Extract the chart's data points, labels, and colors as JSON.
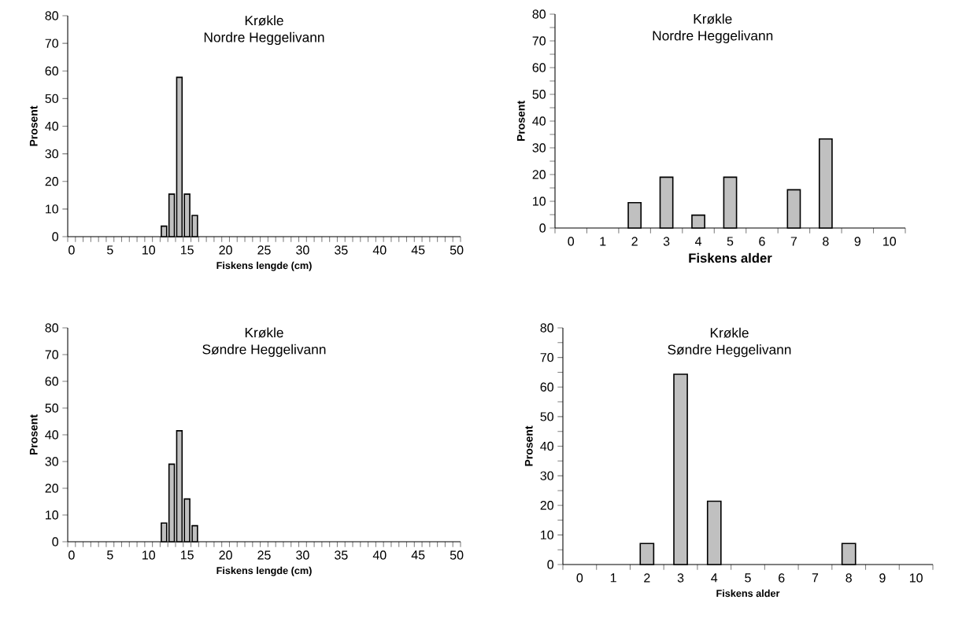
{
  "chart_data": [
    {
      "type": "bar",
      "title": "Krøkle",
      "subtitle": "Nordre Heggelivann",
      "xlabel": "Fiskens lengde (cm)",
      "ylabel": "Prosent",
      "categories": [
        "0",
        null,
        null,
        null,
        null,
        "5",
        null,
        null,
        null,
        null,
        "10",
        null,
        null,
        null,
        null,
        "15",
        null,
        null,
        null,
        null,
        "20",
        null,
        null,
        null,
        null,
        "25",
        null,
        null,
        null,
        null,
        "30",
        null,
        null,
        null,
        null,
        "35",
        null,
        null,
        null,
        null,
        "40",
        null,
        null,
        null,
        null,
        "45",
        null,
        null,
        null,
        null,
        "50"
      ],
      "values": [
        null,
        null,
        null,
        null,
        null,
        null,
        null,
        null,
        null,
        null,
        null,
        null,
        3.8,
        15.4,
        57.7,
        15.4,
        7.7,
        null,
        null,
        null,
        null,
        null,
        null,
        null,
        null,
        null,
        null,
        null,
        null,
        null,
        null,
        null,
        null,
        null,
        null,
        null,
        null,
        null,
        null,
        null,
        null,
        null,
        null,
        null,
        null,
        null,
        null,
        null,
        null,
        null,
        null
      ],
      "color": "#c0c0c0",
      "ylim": [
        0,
        80
      ],
      "yticks": [
        0,
        10,
        20,
        30,
        40,
        50,
        60,
        70,
        80
      ]
    },
    {
      "type": "bar",
      "title": "Krøkle",
      "subtitle": "Nordre Heggelivann",
      "xlabel": "Fiskens alder",
      "ylabel": "Prosent",
      "categories": [
        "0",
        "1",
        "2",
        "3",
        "4",
        "5",
        "6",
        "7",
        "8",
        "9",
        "10"
      ],
      "values": [
        null,
        null,
        9.5,
        19,
        4.8,
        19,
        null,
        14.3,
        33.3,
        null,
        null
      ],
      "color": "#c0c0c0",
      "ylim": [
        0,
        80
      ],
      "yticks": [
        0,
        {
          "value": 5,
          "label": null
        },
        10,
        {
          "value": 15,
          "label": null
        },
        20,
        {
          "value": 25,
          "label": null
        },
        30,
        {
          "value": 35,
          "label": null
        },
        40,
        {
          "value": 45,
          "label": null
        },
        50,
        {
          "value": 55,
          "label": null
        },
        60,
        {
          "value": 65,
          "label": null
        },
        70,
        {
          "value": 75,
          "label": null
        },
        80
      ]
    },
    {
      "type": "bar",
      "title": "Krøkle",
      "subtitle": "Søndre Heggelivann",
      "xlabel": "Fiskens lengde (cm)",
      "ylabel": "Prosent",
      "categories": [
        "0",
        null,
        null,
        null,
        null,
        "5",
        null,
        null,
        null,
        null,
        "10",
        null,
        null,
        null,
        null,
        "15",
        null,
        null,
        null,
        null,
        "20",
        null,
        null,
        null,
        null,
        "25",
        null,
        null,
        null,
        null,
        "30",
        null,
        null,
        null,
        null,
        "35",
        null,
        null,
        null,
        null,
        "40",
        null,
        null,
        null,
        null,
        "45",
        null,
        null,
        null,
        null,
        "50"
      ],
      "values": [
        null,
        null,
        null,
        null,
        null,
        null,
        null,
        null,
        null,
        null,
        null,
        null,
        7,
        29,
        41.5,
        16,
        6,
        null,
        null,
        null,
        null,
        null,
        null,
        null,
        null,
        null,
        null,
        null,
        null,
        null,
        null,
        null,
        null,
        null,
        null,
        null,
        null,
        null,
        null,
        null,
        null,
        null,
        null,
        null,
        null,
        null,
        null,
        null,
        null,
        null,
        null
      ],
      "color": "#c0c0c0",
      "ylim": [
        0,
        80
      ],
      "yticks": [
        0,
        10,
        20,
        30,
        40,
        50,
        60,
        70,
        80
      ]
    },
    {
      "type": "bar",
      "title": "Krøkle",
      "subtitle": "Søndre Heggelivann",
      "xlabel": "Fiskens alder",
      "ylabel": "Prosent",
      "categories": [
        "0",
        "1",
        "2",
        "3",
        "4",
        "5",
        "6",
        "7",
        "8",
        "9",
        "10"
      ],
      "values": [
        null,
        null,
        7.1,
        64.3,
        21.4,
        null,
        null,
        null,
        7.1,
        null,
        null
      ],
      "color": "#c0c0c0",
      "ylim": [
        0,
        80
      ],
      "yticks": [
        0,
        {
          "value": 5,
          "label": null
        },
        10,
        {
          "value": 15,
          "label": null
        },
        20,
        {
          "value": 25,
          "label": null
        },
        30,
        {
          "value": 35,
          "label": null
        },
        40,
        {
          "value": 45,
          "label": null
        },
        50,
        {
          "value": 55,
          "label": null
        },
        60,
        {
          "value": 65,
          "label": null
        },
        70,
        {
          "value": 75,
          "label": null
        },
        80
      ]
    }
  ]
}
